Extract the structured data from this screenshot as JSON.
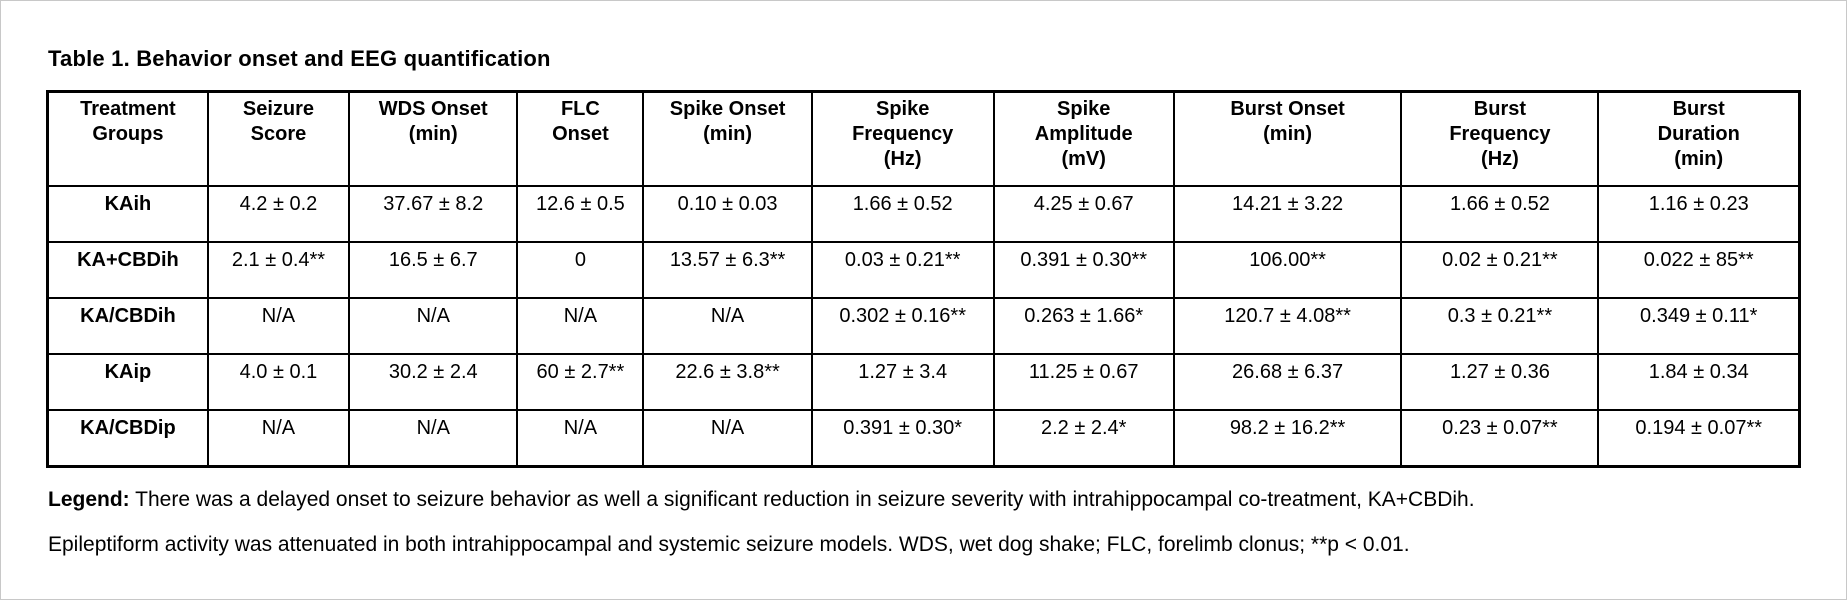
{
  "title": "Table 1. Behavior onset and EEG quantification",
  "table": {
    "columns": [
      {
        "id": "treatment-groups",
        "label": "Treatment\nGroups",
        "width_pct": 9.1
      },
      {
        "id": "seizure-score",
        "label": "Seizure\nScore",
        "width_pct": 8.0
      },
      {
        "id": "wds-onset",
        "label": "WDS Onset\n(min)",
        "width_pct": 9.6
      },
      {
        "id": "flc-onset",
        "label": "FLC\nOnset",
        "width_pct": 7.1
      },
      {
        "id": "spike-onset",
        "label": "Spike Onset\n(min)",
        "width_pct": 9.6
      },
      {
        "id": "spike-frequency",
        "label": "Spike\nFrequency\n(Hz)",
        "width_pct": 10.4
      },
      {
        "id": "spike-amplitude",
        "label": "Spike\nAmplitude\n(mV)",
        "width_pct": 10.3
      },
      {
        "id": "burst-onset",
        "label": "Burst Onset\n(min)",
        "width_pct": 13.1
      },
      {
        "id": "burst-frequency",
        "label": "Burst\nFrequency\n(Hz)",
        "width_pct": 11.3
      },
      {
        "id": "burst-duration",
        "label": "Burst\nDuration\n(min)",
        "width_pct": 11.5
      }
    ],
    "rows": [
      {
        "group": "KAih",
        "values": [
          "4.2 ± 0.2",
          "37.67 ± 8.2",
          "12.6 ± 0.5",
          "0.10 ± 0.03",
          "1.66 ± 0.52",
          "4.25 ± 0.67",
          "14.21 ± 3.22",
          "1.66 ± 0.52",
          "1.16 ± 0.23"
        ]
      },
      {
        "group": "KA+CBDih",
        "values": [
          "2.1 ± 0.4**",
          "16.5 ± 6.7",
          "0",
          "13.57 ± 6.3**",
          "0.03 ± 0.21**",
          "0.391 ± 0.30**",
          "106.00**",
          "0.02 ± 0.21**",
          "0.022 ± 85**"
        ]
      },
      {
        "group": "KA/CBDih",
        "values": [
          "N/A",
          "N/A",
          "N/A",
          "N/A",
          "0.302 ± 0.16**",
          "0.263 ± 1.66*",
          "120.7 ± 4.08**",
          "0.3 ± 0.21**",
          "0.349 ± 0.11*"
        ]
      },
      {
        "group": "KAip",
        "values": [
          "4.0 ± 0.1",
          "30.2 ± 2.4",
          "60 ± 2.7**",
          "22.6 ± 3.8**",
          "1.27 ± 3.4",
          "11.25 ± 0.67",
          "26.68 ± 6.37",
          "1.27 ± 0.36",
          "1.84 ± 0.34"
        ]
      },
      {
        "group": "KA/CBDip",
        "values": [
          "N/A",
          "N/A",
          "N/A",
          "N/A",
          "0.391 ± 0.30*",
          "2.2 ± 2.4*",
          "98.2 ± 16.2**",
          "0.23 ± 0.07**",
          "0.194 ± 0.07**"
        ]
      }
    ]
  },
  "legend": {
    "label": "Legend:",
    "line1": "There was a delayed onset to seizure behavior as well a significant reduction in seizure severity with intrahippocampal co-treatment, KA+CBDih.",
    "line2": "Epileptiform activity was attenuated in both intrahippocampal and systemic seizure models.  WDS, wet dog shake; FLC, forelimb clonus; **p < 0.01."
  }
}
